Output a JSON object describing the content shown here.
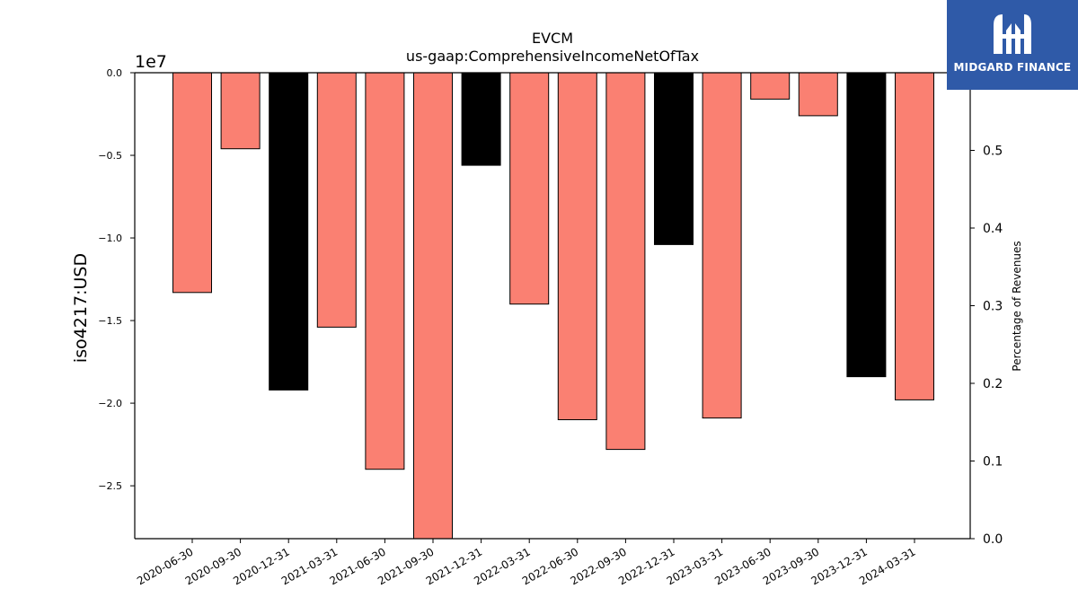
{
  "chart_data": {
    "type": "bar",
    "title": "EVCM",
    "subtitle": "us-gaap:ComprehensiveIncomeNetOfTax",
    "ylabel": "iso4217:USD",
    "y2label": "Percentage of Revenues",
    "scale_label": "1e7",
    "categories": [
      "2020-06-30",
      "2020-09-30",
      "2020-12-31",
      "2021-03-31",
      "2021-06-30",
      "2021-09-30",
      "2021-12-31",
      "2022-03-31",
      "2022-06-30",
      "2022-09-30",
      "2022-12-31",
      "2023-03-31",
      "2023-06-30",
      "2023-09-30",
      "2023-12-31",
      "2024-03-31"
    ],
    "values": [
      -13300000,
      -4600000,
      -19200000,
      -15400000,
      -24000000,
      -28500000,
      -5600000,
      -14000000,
      -21000000,
      -22800000,
      -10400000,
      -20900000,
      -1600000,
      -2600000,
      -18400000,
      -19800000
    ],
    "colors": [
      "#fa8072",
      "#fa8072",
      "#000000",
      "#fa8072",
      "#fa8072",
      "#fa8072",
      "#000000",
      "#fa8072",
      "#fa8072",
      "#fa8072",
      "#000000",
      "#fa8072",
      "#fa8072",
      "#fa8072",
      "#000000",
      "#fa8072"
    ],
    "ylim": [
      -28200000,
      0
    ],
    "yticks": [
      0,
      -5000000,
      -10000000,
      -15000000,
      -20000000,
      -25000000
    ],
    "ytick_labels": [
      "0.0",
      "−0.5",
      "−1.0",
      "−1.5",
      "−2.0",
      "−2.5"
    ],
    "y2lim": [
      0,
      0.6
    ],
    "y2ticks": [
      0,
      0.1,
      0.2,
      0.3,
      0.4,
      0.5
    ],
    "y2tick_labels": [
      "0.0",
      "0.1",
      "0.2",
      "0.3",
      "0.4",
      "0.5"
    ]
  },
  "logo": {
    "text": "MIDGARD FINANCE"
  }
}
